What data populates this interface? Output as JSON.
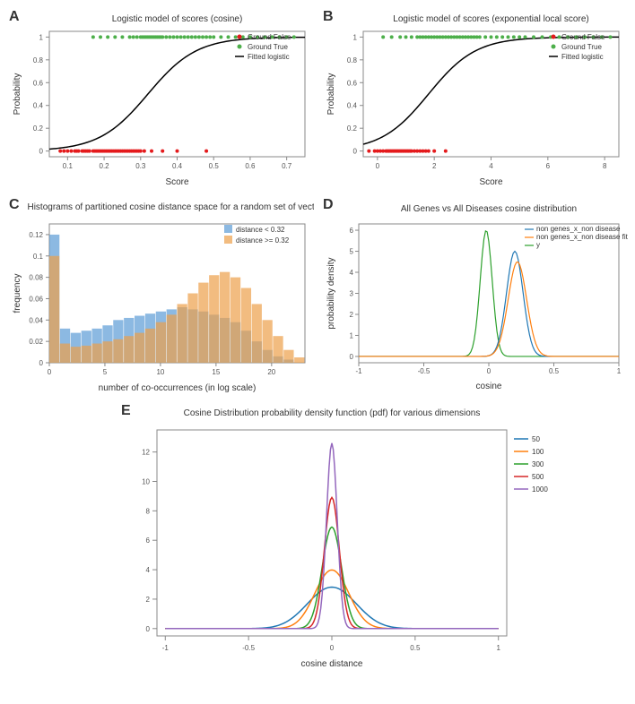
{
  "panelA": {
    "label": "A",
    "type": "scatter+line",
    "title": "Logistic model of scores (cosine)",
    "xlabel": "Score",
    "ylabel": "Probability",
    "xlim": [
      0.05,
      0.75
    ],
    "ylim": [
      -0.05,
      1.05
    ],
    "xticks": [
      0.1,
      0.2,
      0.3,
      0.4,
      0.5,
      0.6,
      0.7
    ],
    "yticks": [
      0,
      0.2,
      0.4,
      0.6,
      0.8,
      1
    ],
    "legend": [
      {
        "label": "Ground False",
        "color": "#e41a1c",
        "marker": "dot"
      },
      {
        "label": "Ground True",
        "color": "#4daf4a",
        "marker": "dot"
      },
      {
        "label": "Fitted logistic",
        "color": "#000000",
        "marker": "line"
      }
    ],
    "curve_color": "#000000",
    "curve_width": 1.5,
    "curve_k": 15,
    "curve_x0": 0.32,
    "false_color": "#e41a1c",
    "true_color": "#4daf4a",
    "false_points": [
      0.08,
      0.09,
      0.1,
      0.11,
      0.12,
      0.125,
      0.13,
      0.14,
      0.145,
      0.15,
      0.155,
      0.16,
      0.17,
      0.175,
      0.18,
      0.185,
      0.19,
      0.195,
      0.2,
      0.205,
      0.21,
      0.215,
      0.22,
      0.225,
      0.23,
      0.235,
      0.24,
      0.245,
      0.25,
      0.255,
      0.26,
      0.265,
      0.27,
      0.275,
      0.28,
      0.285,
      0.29,
      0.295,
      0.3,
      0.31,
      0.33,
      0.36,
      0.4,
      0.48
    ],
    "true_points": [
      0.17,
      0.19,
      0.21,
      0.23,
      0.25,
      0.27,
      0.28,
      0.29,
      0.3,
      0.305,
      0.31,
      0.315,
      0.32,
      0.325,
      0.33,
      0.335,
      0.34,
      0.345,
      0.35,
      0.355,
      0.36,
      0.37,
      0.38,
      0.39,
      0.4,
      0.41,
      0.42,
      0.43,
      0.44,
      0.45,
      0.46,
      0.47,
      0.48,
      0.49,
      0.5,
      0.52,
      0.54,
      0.56,
      0.58,
      0.6,
      0.62,
      0.64,
      0.66,
      0.68,
      0.7,
      0.72
    ],
    "background_color": "#ffffff",
    "title_fontsize": 10,
    "label_fontsize": 10
  },
  "panelB": {
    "label": "B",
    "type": "scatter+line",
    "title": "Logistic model of scores (exponential local score)",
    "xlabel": "Score",
    "ylabel": "Probability",
    "xlim": [
      -0.5,
      8.5
    ],
    "ylim": [
      -0.05,
      1.05
    ],
    "xticks": [
      0,
      2,
      4,
      6,
      8
    ],
    "yticks": [
      0,
      0.2,
      0.4,
      0.6,
      0.8,
      1
    ],
    "legend": [
      {
        "label": "Ground False",
        "color": "#e41a1c",
        "marker": "dot"
      },
      {
        "label": "Ground True",
        "color": "#4daf4a",
        "marker": "dot"
      },
      {
        "label": "Fitted logistic",
        "color": "#000000",
        "marker": "line"
      }
    ],
    "curve_color": "#000000",
    "curve_width": 1.5,
    "curve_k": 1.2,
    "curve_x0": 1.8,
    "false_color": "#e41a1c",
    "true_color": "#4daf4a",
    "false_points": [
      -0.3,
      -0.1,
      0,
      0.1,
      0.2,
      0.3,
      0.35,
      0.4,
      0.45,
      0.5,
      0.55,
      0.6,
      0.65,
      0.7,
      0.75,
      0.8,
      0.85,
      0.9,
      0.95,
      1.0,
      1.05,
      1.1,
      1.15,
      1.2,
      1.3,
      1.4,
      1.5,
      1.6,
      1.7,
      1.8,
      2.0,
      2.4
    ],
    "true_points": [
      0.2,
      0.5,
      0.8,
      1.0,
      1.2,
      1.4,
      1.5,
      1.6,
      1.7,
      1.8,
      1.9,
      2.0,
      2.1,
      2.2,
      2.3,
      2.4,
      2.5,
      2.6,
      2.7,
      2.8,
      2.9,
      3.0,
      3.1,
      3.2,
      3.3,
      3.4,
      3.5,
      3.6,
      3.8,
      4.0,
      4.2,
      4.4,
      4.6,
      4.8,
      5.0,
      5.2,
      5.5,
      5.8,
      6.1,
      6.4,
      6.7,
      7.0,
      7.3,
      7.6,
      7.9,
      8.2
    ],
    "background_color": "#ffffff",
    "title_fontsize": 10,
    "label_fontsize": 10
  },
  "panelC": {
    "label": "C",
    "type": "histogram",
    "title": "Histograms of partitioned cosine distance space for a random set of vectors",
    "xlabel": "number of co-occurrences (in log scale)",
    "ylabel": "frequency",
    "xlim": [
      0,
      23
    ],
    "ylim": [
      0,
      0.13
    ],
    "xticks": [
      0,
      5,
      10,
      15,
      20
    ],
    "yticks": [
      0,
      0.02,
      0.04,
      0.06,
      0.08,
      0.1,
      0.12
    ],
    "legend": [
      {
        "label": "distance < 0.32",
        "color": "#5b9bd5"
      },
      {
        "label": "distance >= 0.32",
        "color": "#ed9f4a"
      }
    ],
    "series1_color": "#5b9bd5",
    "series2_color": "#ed9f4a",
    "series1_values": [
      0.12,
      0.032,
      0.028,
      0.03,
      0.032,
      0.035,
      0.04,
      0.042,
      0.044,
      0.046,
      0.048,
      0.05,
      0.052,
      0.05,
      0.048,
      0.045,
      0.042,
      0.038,
      0.03,
      0.02,
      0.012,
      0.006,
      0.003,
      0
    ],
    "series2_values": [
      0.1,
      0.018,
      0.015,
      0.016,
      0.018,
      0.02,
      0.022,
      0.025,
      0.028,
      0.032,
      0.038,
      0.045,
      0.055,
      0.065,
      0.075,
      0.082,
      0.085,
      0.08,
      0.07,
      0.055,
      0.04,
      0.025,
      0.012,
      0.005
    ],
    "opacity": 0.7,
    "background_color": "#ffffff",
    "title_fontsize": 9,
    "label_fontsize": 9
  },
  "panelD": {
    "label": "D",
    "type": "line",
    "title": "All Genes vs All Diseases cosine distribution",
    "xlabel": "cosine",
    "ylabel": "probability density",
    "xlim": [
      -1,
      1
    ],
    "ylim": [
      -0.3,
      6.3
    ],
    "xticks": [
      -1,
      -0.5,
      0,
      0.5,
      1
    ],
    "yticks": [
      0,
      1,
      2,
      3,
      4,
      5,
      6
    ],
    "legend": [
      {
        "label": "non genes_x_non disease",
        "color": "#1f77b4"
      },
      {
        "label": "non genes_x_non disease fit",
        "color": "#ff7f0e"
      },
      {
        "label": "y",
        "color": "#2ca02c"
      }
    ],
    "curves": [
      {
        "color": "#2ca02c",
        "center": -0.02,
        "height": 6.0,
        "width": 0.065
      },
      {
        "color": "#1f77b4",
        "center": 0.2,
        "height": 5.0,
        "width": 0.09
      },
      {
        "color": "#ff7f0e",
        "center": 0.22,
        "height": 4.5,
        "width": 0.1
      }
    ],
    "background_color": "#ffffff",
    "title_fontsize": 7,
    "label_fontsize": 7
  },
  "panelE": {
    "label": "E",
    "type": "line",
    "title": "Cosine Distribution probability density function (pdf) for various dimensions",
    "xlabel": "cosine distance",
    "ylabel": "",
    "xlim": [
      -1.05,
      1.05
    ],
    "ylim": [
      -0.5,
      13.5
    ],
    "xticks": [
      -1,
      -0.5,
      0,
      0.5,
      1
    ],
    "yticks": [
      0,
      2,
      4,
      6,
      8,
      10,
      12
    ],
    "legend": [
      {
        "label": "50",
        "color": "#1f77b4"
      },
      {
        "label": "100",
        "color": "#ff7f0e"
      },
      {
        "label": "300",
        "color": "#2ca02c"
      },
      {
        "label": "500",
        "color": "#d62728"
      },
      {
        "label": "1000",
        "color": "#9467bd"
      }
    ],
    "curves": [
      {
        "label": "50",
        "color": "#1f77b4",
        "n": 50
      },
      {
        "label": "100",
        "color": "#ff7f0e",
        "n": 100
      },
      {
        "label": "300",
        "color": "#2ca02c",
        "n": 300
      },
      {
        "label": "500",
        "color": "#d62728",
        "n": 500
      },
      {
        "label": "1000",
        "color": "#9467bd",
        "n": 1000
      }
    ],
    "line_width": 1.5,
    "background_color": "#ffffff",
    "title_fontsize": 11,
    "label_fontsize": 10
  }
}
